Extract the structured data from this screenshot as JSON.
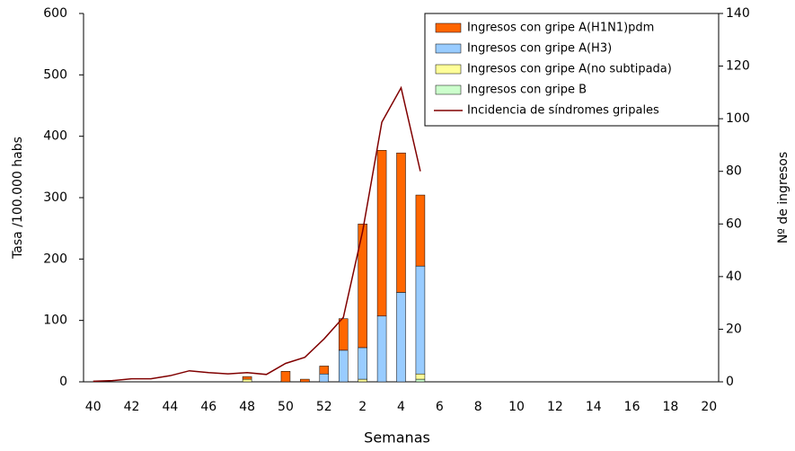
{
  "chart_data": {
    "type": "bar-line",
    "x_label": "Semanas",
    "y_label": "Tasa /100.000 habs",
    "y2_label": "Nº de ingresos",
    "categories": [
      "40",
      null,
      "42",
      null,
      "44",
      null,
      "46",
      null,
      "48",
      null,
      "50",
      null,
      "52",
      null,
      "2",
      null,
      "4",
      null,
      "6",
      null,
      "8",
      null,
      "10",
      null,
      "12",
      null,
      "14",
      null,
      "16",
      null,
      "18",
      null,
      "20"
    ],
    "series": [
      {
        "name": "Ingresos con gripe A(H1N1)pdm",
        "type": "bar",
        "axis": "y2",
        "color": "#ff6600",
        "values": [
          null,
          null,
          null,
          null,
          null,
          null,
          null,
          null,
          1,
          null,
          4,
          1,
          3,
          12,
          47,
          63,
          53,
          27,
          null,
          null,
          null,
          null,
          null,
          null,
          null,
          null,
          null,
          null,
          null,
          null,
          null,
          null,
          null
        ]
      },
      {
        "name": "Ingresos con gripe A(H3)",
        "type": "bar",
        "axis": "y2",
        "color": "#99ccff",
        "values": [
          null,
          null,
          null,
          null,
          null,
          null,
          null,
          null,
          null,
          null,
          null,
          null,
          3,
          12,
          12,
          25,
          34,
          41,
          null,
          null,
          null,
          null,
          null,
          null,
          null,
          null,
          null,
          null,
          null,
          null,
          null,
          null,
          null
        ]
      },
      {
        "name": "Ingresos con gripe A(no subtipada)",
        "type": "bar",
        "axis": "y2",
        "color": "#ffff99",
        "values": [
          null,
          null,
          null,
          null,
          null,
          null,
          null,
          null,
          1,
          null,
          null,
          null,
          null,
          null,
          1,
          null,
          null,
          2,
          null,
          null,
          null,
          null,
          null,
          null,
          null,
          null,
          null,
          null,
          null,
          null,
          null,
          null,
          null
        ]
      },
      {
        "name": "Ingresos con gripe B",
        "type": "bar",
        "axis": "y2",
        "color": "#ccffcc",
        "values": [
          null,
          null,
          null,
          null,
          null,
          null,
          null,
          null,
          null,
          null,
          null,
          null,
          null,
          null,
          null,
          null,
          null,
          1,
          null,
          null,
          null,
          null,
          null,
          null,
          null,
          null,
          null,
          null,
          null,
          null,
          null,
          null,
          null
        ]
      },
      {
        "name": "Incidencia de síndromes gripales",
        "type": "line",
        "axis": "y",
        "color": "#800000",
        "values": [
          1,
          2,
          5,
          5,
          10,
          18,
          15,
          13,
          15,
          12,
          30,
          40,
          70,
          105,
          245,
          423,
          479,
          343,
          null,
          null,
          null,
          null,
          null,
          null,
          null,
          null,
          null,
          null,
          null,
          null,
          null,
          null,
          null
        ]
      }
    ],
    "ylim": [
      0,
      600
    ],
    "yticks": [
      0,
      100,
      200,
      300,
      400,
      500,
      600
    ],
    "y2lim": [
      0,
      140
    ],
    "y2ticks": [
      0,
      20,
      40,
      60,
      80,
      100,
      120,
      140
    ],
    "grid": false,
    "legend": "upper right"
  }
}
